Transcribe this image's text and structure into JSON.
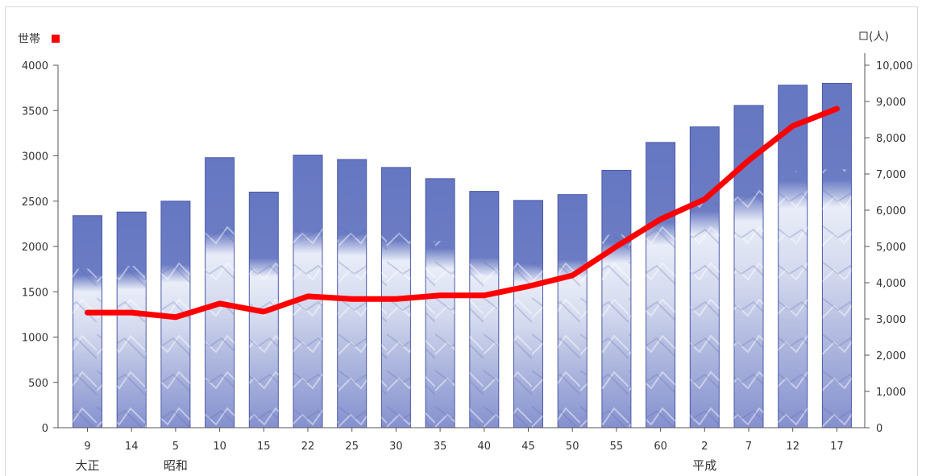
{
  "chart_data": {
    "type": "bar",
    "left_axis_label": "世帯",
    "right_axis_label": "(人)",
    "left_legend_color": "#ff0000",
    "bar_color": "#6f7fc8",
    "line_color": "#ff0000",
    "left_ylim": [
      0,
      4000
    ],
    "left_ticks": [
      "0",
      "500",
      "1000",
      "1500",
      "2000",
      "2500",
      "3000",
      "3500",
      "4000"
    ],
    "right_ylim": [
      0,
      10000
    ],
    "right_ticks": [
      "0",
      "1,000",
      "2,000",
      "3,000",
      "4,000",
      "5,000",
      "6,000",
      "7,000",
      "8,000",
      "9,000",
      "10,000"
    ],
    "categories": [
      "9",
      "14",
      "5",
      "10",
      "15",
      "22",
      "25",
      "30",
      "35",
      "40",
      "45",
      "50",
      "55",
      "60",
      "2",
      "7",
      "12",
      "17"
    ],
    "eras": [
      {
        "label": "大正",
        "category_index": 0
      },
      {
        "label": "昭和",
        "category_index": 2
      },
      {
        "label": "平成",
        "category_index": 14
      }
    ],
    "series": [
      {
        "axis": "right",
        "kind": "bar",
        "values": [
          5850,
          5950,
          6250,
          7450,
          6500,
          7520,
          7400,
          7180,
          6870,
          6520,
          6270,
          6430,
          7100,
          7870,
          8300,
          8890,
          9450,
          9500
        ]
      },
      {
        "axis": "left",
        "kind": "line",
        "values": [
          1270,
          1270,
          1220,
          1370,
          1280,
          1450,
          1420,
          1420,
          1460,
          1460,
          1560,
          1680,
          2000,
          2300,
          2520,
          2950,
          3330,
          3520
        ]
      }
    ]
  }
}
